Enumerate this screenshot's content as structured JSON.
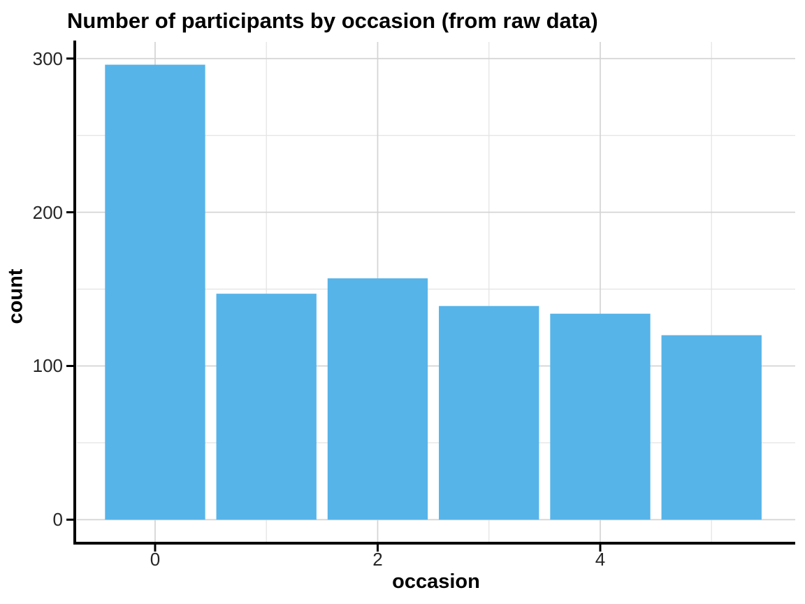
{
  "chart_data": {
    "type": "bar",
    "title": "Number of participants by occasion (from raw data)",
    "xlabel": "occasion",
    "ylabel": "count",
    "categories": [
      0,
      1,
      2,
      3,
      4,
      5
    ],
    "values": [
      296,
      147,
      157,
      139,
      134,
      120
    ],
    "bar_width": 0.9,
    "bar_color": "#56B4E9",
    "xlim": [
      -0.703,
      5.752
    ],
    "ylim": [
      -15.3,
      310.8
    ],
    "x_major_ticks": [
      0,
      2,
      4
    ],
    "x_major_labels": [
      "0",
      "2",
      "4"
    ],
    "x_minor_ticks": [
      1,
      3,
      5
    ],
    "y_major_ticks": [
      0,
      100,
      200,
      300
    ],
    "y_major_labels": [
      "0",
      "100",
      "200",
      "300"
    ],
    "y_minor_ticks": [
      50,
      150,
      250
    ],
    "grid": true,
    "grid_major_color": "#D4D4D4",
    "grid_minor_color": "#E5E5E5",
    "axis_color": "#000000",
    "tick_label_color": "#262626",
    "background_color": "#FFFFFF",
    "legend": "none"
  }
}
